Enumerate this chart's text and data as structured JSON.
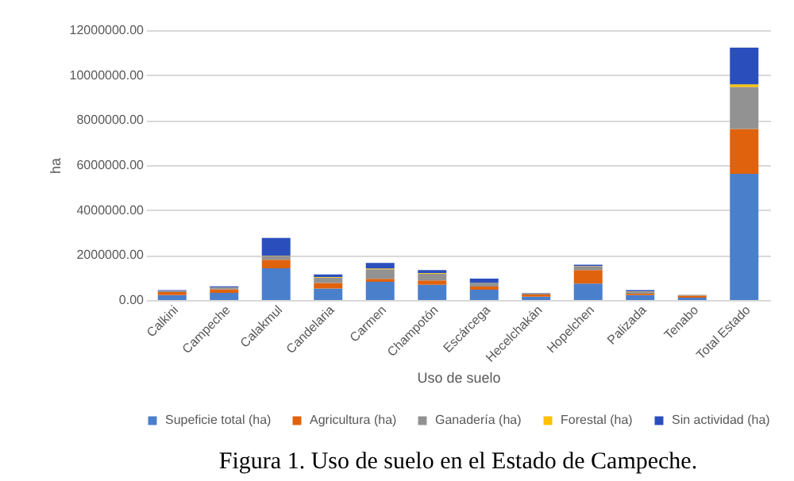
{
  "chart_data": {
    "type": "bar",
    "stacked": true,
    "xlabel": "Uso de suelo",
    "ylabel": "ha",
    "categories": [
      "Calkini",
      "Campeche",
      "Calakmul",
      "Candelaria",
      "Carmen",
      "Champotón",
      "Escárcega",
      "Hecelchakán",
      "Hopelchen",
      "Palizada",
      "Tenabo",
      "Total Estado"
    ],
    "series": [
      {
        "name": "Supeficie total (ha)",
        "color": "#4a7fcc",
        "values": [
          220000,
          320000,
          1410000,
          510000,
          810000,
          680000,
          460000,
          150000,
          730000,
          220000,
          110000,
          5610000
        ]
      },
      {
        "name": "Agricultura (ha)",
        "color": "#e0620d",
        "values": [
          130000,
          160000,
          380000,
          250000,
          130000,
          190000,
          140000,
          100000,
          600000,
          60000,
          80000,
          2000000
        ]
      },
      {
        "name": "Ganadería (ha)",
        "color": "#929292",
        "values": [
          50000,
          70000,
          160000,
          240000,
          430000,
          300000,
          140000,
          30000,
          160000,
          100000,
          20000,
          1870000
        ]
      },
      {
        "name": "Forestal (ha)",
        "color": "#ffc000",
        "values": [
          10000,
          10000,
          20000,
          20000,
          30000,
          30000,
          20000,
          10000,
          20000,
          10000,
          10000,
          110000
        ]
      },
      {
        "name": "Sin actividad (ha)",
        "color": "#2a4fbd",
        "values": [
          30000,
          50000,
          790000,
          120000,
          250000,
          130000,
          190000,
          20000,
          60000,
          50000,
          10000,
          1630000
        ]
      }
    ],
    "ylim": [
      0,
      12000000
    ],
    "yticks": [
      {
        "value": 0,
        "label": "0.00"
      },
      {
        "value": 2000000,
        "label": "2000000.00"
      },
      {
        "value": 4000000,
        "label": "4000000.00"
      },
      {
        "value": 6000000,
        "label": "6000000.00"
      },
      {
        "value": 8000000,
        "label": "8000000.00"
      },
      {
        "value": 10000000,
        "label": "10000000.00"
      },
      {
        "value": 12000000,
        "label": "12000000.00"
      }
    ],
    "grid": "y",
    "legend": "bottom",
    "annotations": [
      "Figura 1. Uso de suelo en el Estado de Campeche."
    ]
  }
}
